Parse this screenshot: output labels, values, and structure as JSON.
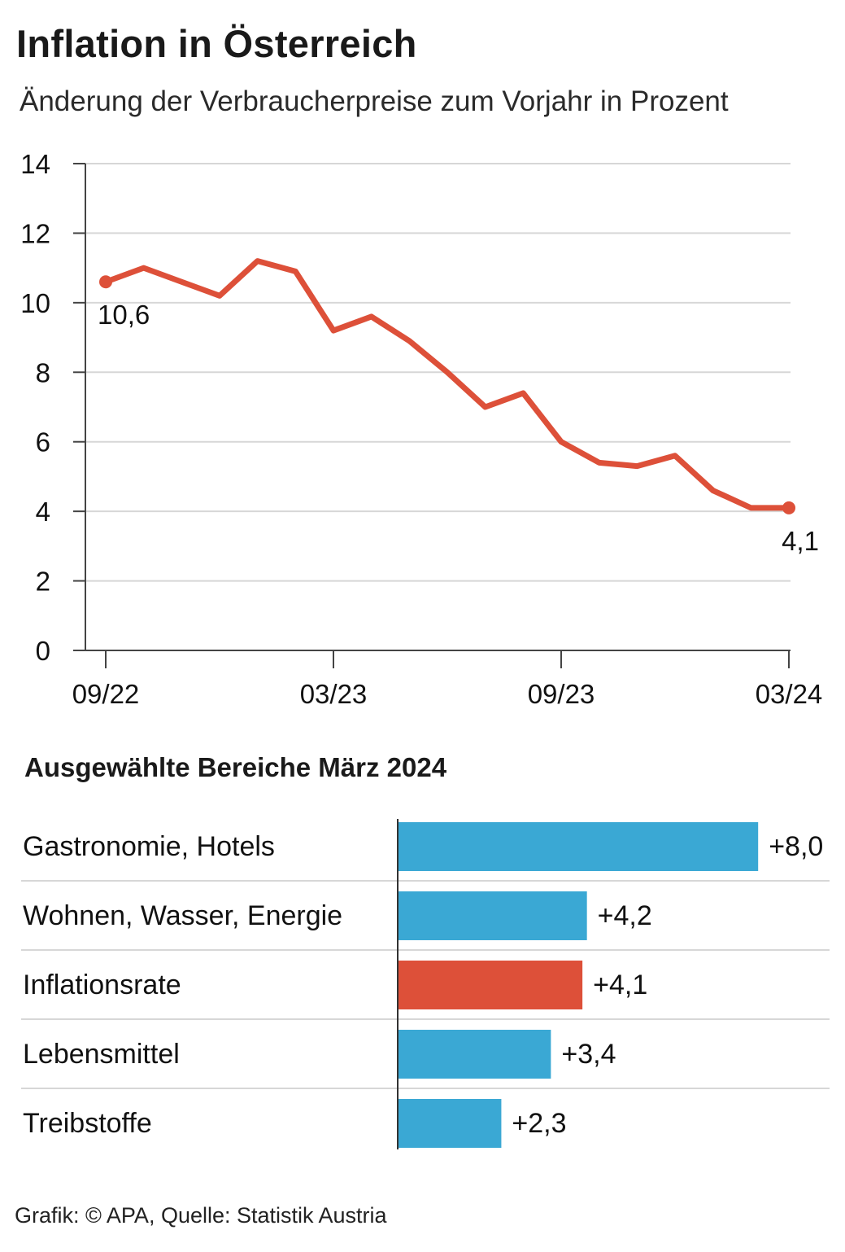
{
  "title": "Inflation in Österreich",
  "subtitle": "Änderung der Verbraucherpreise zum Vorjahr in Prozent",
  "footer": "Grafik: © APA, Quelle: Statistik Austria",
  "colors": {
    "line": "#dd5039",
    "bar": "#3aa8d4",
    "highlight": "#dd5039",
    "grid": "#d7d7d7",
    "axis": "#444444"
  },
  "chart_data": [
    {
      "type": "line",
      "title": "",
      "xlabel": "",
      "ylabel": "",
      "ylim": [
        0,
        14
      ],
      "yticks": [
        0,
        2,
        4,
        6,
        8,
        10,
        12,
        14
      ],
      "grid": true,
      "x": [
        "09/22",
        "10/22",
        "11/22",
        "12/22",
        "01/23",
        "02/23",
        "03/23",
        "04/23",
        "05/23",
        "06/23",
        "07/23",
        "08/23",
        "09/23",
        "10/23",
        "11/23",
        "12/23",
        "01/24",
        "02/24",
        "03/24"
      ],
      "xtick_labels": [
        "09/22",
        "03/23",
        "09/23",
        "03/24"
      ],
      "series": [
        {
          "values": [
            10.6,
            11.0,
            10.6,
            10.2,
            11.2,
            10.9,
            9.2,
            9.6,
            8.9,
            8.0,
            7.0,
            7.4,
            6.0,
            5.4,
            5.3,
            5.6,
            4.6,
            4.1,
            4.1
          ]
        }
      ],
      "annotations": [
        {
          "x": "09/22",
          "label": "10,6"
        },
        {
          "x": "03/24",
          "label": "4,1"
        }
      ]
    },
    {
      "type": "bar",
      "orientation": "horizontal",
      "title": "Ausgewählte Bereiche März 2024",
      "categories": [
        "Gastronomie, Hotels",
        "Wohnen, Wasser, Energie",
        "Inflationsrate",
        "Lebensmittel",
        "Treibstoffe"
      ],
      "values": [
        8.0,
        4.2,
        4.1,
        3.4,
        2.3
      ],
      "value_labels": [
        "+8,0",
        "+4,2",
        "+4,1",
        "+3,4",
        "+2,3"
      ],
      "highlight": "Inflationsrate"
    }
  ]
}
